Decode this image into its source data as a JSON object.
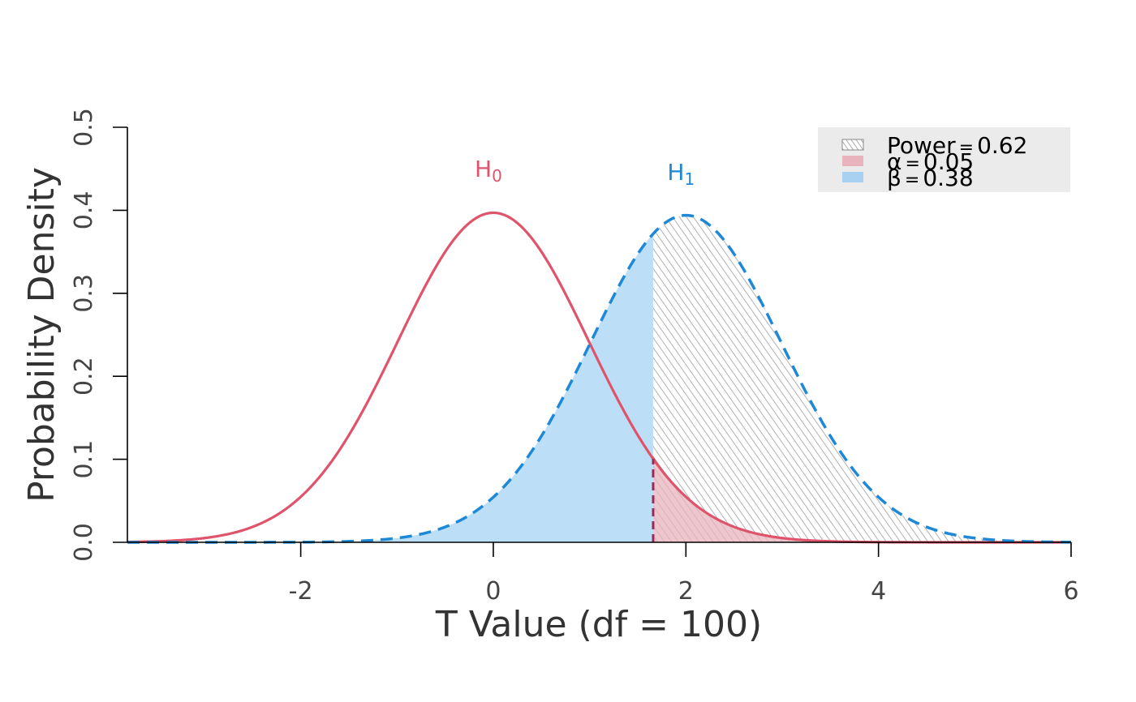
{
  "chart_data": {
    "type": "area",
    "xlabel": "T Value (df = 100)",
    "ylabel": "Probability Density",
    "xlim": [
      -3.8,
      6
    ],
    "ylim": [
      0,
      0.5
    ],
    "x_ticks": [
      -2,
      0,
      2,
      4,
      6
    ],
    "x_tick_labels": [
      "-2",
      "0",
      "2",
      "4",
      "6"
    ],
    "y_ticks": [
      0,
      0.1,
      0.2,
      0.3,
      0.4,
      0.5
    ],
    "y_tick_labels": [
      "0.0",
      "0.1",
      "0.2",
      "0.3",
      "0.4",
      "0.5"
    ],
    "grid": false,
    "legend_position": "top-right",
    "df": 100,
    "critical_value": 1.66,
    "series": [
      {
        "label_main": "H",
        "label_sub": "0",
        "center": 0,
        "peak": 0.397,
        "color": "#DF536B",
        "linestyle": "solid"
      },
      {
        "label_main": "H",
        "label_sub": "1",
        "center": 2.0,
        "peak": 0.394,
        "color": "#1E88D8",
        "linestyle": "dashed"
      }
    ],
    "legend": [
      {
        "symbol": "Power",
        "value": "0.62",
        "fill": "hatch"
      },
      {
        "symbol": "α",
        "value": "0.05",
        "fill": "#E8B3BC"
      },
      {
        "symbol": "β",
        "value": "0.38",
        "fill": "#A8D1F1"
      }
    ],
    "colors": {
      "h0": "#DF536B",
      "h1": "#1E88D8",
      "beta_fill": "#BCDFF7",
      "alpha_fill": "#E8B3BC",
      "critical_line": "#9E2A58",
      "hatch": "#9E9E9E",
      "legend_bg": "#EBEBEB",
      "axis": "#000000",
      "tick_text": "#444444",
      "label_text": "#333333"
    }
  }
}
